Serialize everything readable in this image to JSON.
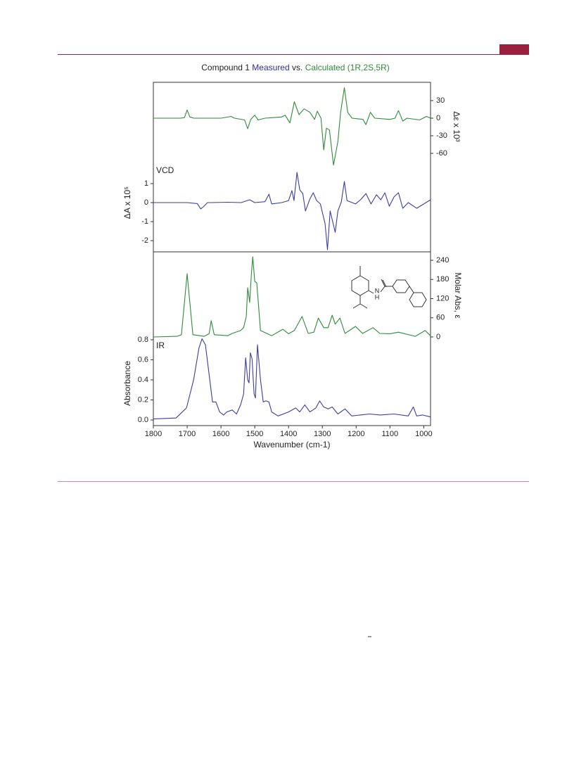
{
  "chart_data": [
    {
      "type": "line",
      "title_parts": [
        {
          "text": "Compound 1 ",
          "color": "#222222"
        },
        {
          "text": "Measured",
          "color": "#2e2e9a"
        },
        {
          "text": " vs. ",
          "color": "#222222"
        },
        {
          "text": "Calculated (1R,2S,5R)",
          "color": "#2e8b3a"
        }
      ],
      "label": "VCD",
      "ylabel": "ΔA x 10⁵",
      "y2label": "Δε x 10³",
      "xlim": [
        1800,
        980
      ],
      "ylim": [
        -2.59,
        6.33
      ],
      "yticks": [
        -2,
        -1,
        0,
        1
      ],
      "y2lim": [
        -228,
        61.2
      ],
      "y2ticks": [
        -60,
        -30,
        0,
        30
      ],
      "series": [
        {
          "color": "#2e8b3a",
          "axis": "y2",
          "x": [
            1800,
            1720,
            1708,
            1700,
            1692,
            1680,
            1600,
            1570,
            1560,
            1530,
            1521,
            1512,
            1500,
            1490,
            1470,
            1420,
            1410,
            1396,
            1383,
            1369,
            1354,
            1337,
            1323,
            1315,
            1304,
            1296,
            1288,
            1279,
            1267,
            1254,
            1246,
            1235,
            1225,
            1212,
            1180,
            1171,
            1158,
            1145,
            1100,
            1085,
            1075,
            1062,
            1050,
            1012,
            992,
            980
          ],
          "values": [
            0,
            0,
            1,
            14,
            2,
            0,
            0,
            3,
            0,
            -3,
            -18,
            -2,
            5,
            -3,
            0,
            2,
            5,
            -8,
            28,
            6,
            16,
            10,
            -2,
            12,
            0,
            -54,
            -17,
            -20,
            -80,
            -40,
            10,
            52,
            10,
            0,
            -2,
            -11,
            10,
            0,
            -2,
            0,
            13,
            -5,
            0,
            -3,
            3,
            0
          ]
        },
        {
          "color": "#3c3ca0",
          "x": [
            1800,
            1700,
            1670,
            1660,
            1652,
            1640,
            1629,
            1580,
            1540,
            1515,
            1500,
            1470,
            1458,
            1450,
            1420,
            1400,
            1390,
            1384,
            1375,
            1367,
            1358,
            1350,
            1337,
            1327,
            1317,
            1306,
            1292,
            1285,
            1277,
            1271,
            1262,
            1254,
            1244,
            1235,
            1227,
            1202,
            1187,
            1171,
            1156,
            1140,
            1127,
            1115,
            1102,
            1088,
            1075,
            1062,
            1046,
            1021,
            1000,
            980
          ],
          "values": [
            0,
            0,
            -0.05,
            -0.33,
            -0.22,
            0,
            0,
            0.02,
            0,
            0.15,
            0,
            0.05,
            0.44,
            -0.07,
            0,
            0.11,
            0.63,
            0.11,
            1.59,
            0.67,
            0.48,
            -0.44,
            0.19,
            0.52,
            0.11,
            -0.07,
            -1.11,
            -2.48,
            -0.44,
            -0.89,
            -1.56,
            -0.44,
            0.04,
            1.11,
            0.11,
            -0.07,
            0.15,
            0.48,
            -0.07,
            0.41,
            0.15,
            0.52,
            -0.19,
            0.3,
            0.52,
            -0.3,
            0,
            -0.3,
            -0.07,
            0.15
          ]
        }
      ]
    },
    {
      "type": "line",
      "label": "IR",
      "ylabel": "Absorbance",
      "y2label": "Molar Abs, ε",
      "xlabel": "Wavenumber (cm-1)",
      "annotations": [
        "N",
        "H"
      ],
      "xlim": [
        1800,
        980
      ],
      "xticks": [
        1800,
        1700,
        1600,
        1500,
        1400,
        1300,
        1200,
        1100,
        1000
      ],
      "ylim": [
        -0.056,
        1.677
      ],
      "yticks": [
        {
          "value": 0,
          "label": "0.0"
        },
        0.2,
        0.4,
        0.6,
        0.8
      ],
      "y2lim": [
        -277.5,
        266.4
      ],
      "y2ticks": [
        0,
        60,
        120,
        180,
        240
      ],
      "series": [
        {
          "color": "#2e8b3a",
          "axis": "y2",
          "x": [
            1800,
            1730,
            1717,
            1700,
            1683,
            1650,
            1635,
            1629,
            1620,
            1580,
            1567,
            1542,
            1533,
            1525,
            1521,
            1515,
            1510,
            1506,
            1500,
            1494,
            1483,
            1450,
            1417,
            1400,
            1383,
            1360,
            1342,
            1325,
            1312,
            1296,
            1283,
            1271,
            1262,
            1248,
            1233,
            1202,
            1181,
            1150,
            1130,
            1100,
            1075,
            1025,
            996,
            980
          ],
          "values": [
            0,
            2,
            7,
            198,
            7,
            2,
            10,
            51,
            7,
            4,
            11,
            20,
            29,
            64,
            154,
            108,
            196,
            251,
            174,
            169,
            20,
            4,
            24,
            10,
            20,
            64,
            11,
            15,
            59,
            29,
            29,
            68,
            40,
            59,
            11,
            33,
            11,
            29,
            11,
            10,
            15,
            2,
            20,
            4
          ]
        },
        {
          "color": "#3c3ca0",
          "x": [
            1800,
            1733,
            1702,
            1681,
            1665,
            1656,
            1646,
            1633,
            1625,
            1615,
            1604,
            1592,
            1583,
            1567,
            1554,
            1542,
            1533,
            1527,
            1521,
            1517,
            1513,
            1508,
            1502,
            1498,
            1492,
            1483,
            1475,
            1467,
            1458,
            1450,
            1431,
            1400,
            1379,
            1367,
            1352,
            1337,
            1319,
            1308,
            1296,
            1283,
            1271,
            1254,
            1233,
            1213,
            1188,
            1160,
            1129,
            1088,
            1046,
            1031,
            1021,
            1004,
            980
          ],
          "values": [
            0.01,
            0.02,
            0.12,
            0.4,
            0.72,
            0.81,
            0.75,
            0.4,
            0.18,
            0.18,
            0.08,
            0.05,
            0.08,
            0.1,
            0.06,
            0.15,
            0.26,
            0.62,
            0.4,
            0.37,
            0.67,
            0.61,
            0.26,
            0.22,
            0.75,
            0.4,
            0.18,
            0.19,
            0.18,
            0.08,
            0.04,
            0.08,
            0.12,
            0.08,
            0.15,
            0.08,
            0.12,
            0.19,
            0.13,
            0.11,
            0.13,
            0.06,
            0.11,
            0.04,
            0.05,
            0.06,
            0.05,
            0.06,
            0.04,
            0.13,
            0.04,
            0.05,
            0.03
          ]
        }
      ]
    }
  ]
}
